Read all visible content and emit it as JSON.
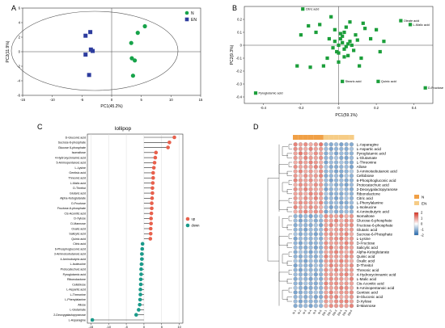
{
  "colors": {
    "N": "#17a34a",
    "EN": "#2d3c9e",
    "loading": "#1b9e3a",
    "up": "#e8604c",
    "down": "#1a9a8a",
    "heat_high": "#d7301f",
    "heat_mid": "#ffffff",
    "heat_low": "#2166ac",
    "group_N": "#f0a046",
    "group_EN": "#f6cc86"
  },
  "chart_data": [
    {
      "panel": "A",
      "type": "scatter",
      "title": "",
      "xlabel": "PC1(45.2%)",
      "ylabel": "PC2(11.9%)",
      "xlim": [
        -15,
        15
      ],
      "ylim": [
        -6,
        6
      ],
      "xticks": [
        -15,
        -10,
        -5,
        0,
        5,
        10,
        15
      ],
      "yticks": [
        -6,
        -4,
        -2,
        0,
        2,
        4,
        6
      ],
      "legend_position": "top-right",
      "series": [
        {
          "name": "N",
          "marker": "circle",
          "x": [
            4.4,
            5.6,
            3.3,
            3.4,
            3.9,
            3.6
          ],
          "y": [
            2.6,
            3.5,
            1.2,
            -0.9,
            -1.2,
            -3.3
          ]
        },
        {
          "name": "EN",
          "marker": "square",
          "x": [
            -4.4,
            -3.6,
            -3.2,
            -4.4,
            -3.8,
            -3.5
          ],
          "y": [
            2.2,
            2.7,
            0.1,
            -0.4,
            -3.2,
            0.3
          ]
        }
      ]
    },
    {
      "panel": "B",
      "type": "scatter",
      "title": "",
      "xlabel": "PC1(59.1%)",
      "ylabel": "PC2(9.3%)",
      "xlim": [
        -0.5,
        0.5
      ],
      "ylim": [
        -0.45,
        0.3
      ],
      "xticks": [
        -0.4,
        -0.2,
        0,
        0.2,
        0.4
      ],
      "yticks": [
        -0.4,
        -0.3,
        -0.2,
        -0.1,
        0,
        0.1,
        0.2
      ],
      "labeled_points": [
        {
          "label": "Citric acid",
          "x": -0.19,
          "y": 0.28
        },
        {
          "label": "Oleate acid",
          "x": 0.33,
          "y": 0.19
        },
        {
          "label": "L-Malic acid",
          "x": 0.38,
          "y": 0.16
        },
        {
          "label": "Stearic acid",
          "x": 0.02,
          "y": -0.28
        },
        {
          "label": "Quinic acid",
          "x": 0.21,
          "y": -0.28
        },
        {
          "label": "D-Fructose",
          "x": 0.46,
          "y": -0.33
        },
        {
          "label": "Pyroglutamic acid",
          "x": -0.44,
          "y": -0.37
        }
      ],
      "points": {
        "x": [
          0.0,
          0.02,
          0.04,
          -0.02,
          0.05,
          0.03,
          0.06,
          -0.03,
          0.01,
          0.07,
          0.0,
          0.02,
          -0.05,
          0.08,
          0.03,
          0.1,
          0.05,
          -0.02,
          0.04,
          0.09,
          -0.06,
          0.12,
          0.06,
          0.0,
          -0.1,
          -0.12,
          -0.16,
          -0.2,
          -0.08,
          -0.04,
          0.14,
          0.17,
          0.2,
          0.24,
          0.22,
          -0.22,
          -0.15,
          0.01,
          0.03,
          -0.01,
          0.11,
          0.13
        ],
        "y": [
          0.0,
          0.02,
          -0.01,
          0.03,
          0.01,
          -0.03,
          0.03,
          -0.02,
          0.05,
          0.0,
          -0.06,
          0.07,
          0.05,
          -0.04,
          0.1,
          0.04,
          -0.08,
          0.12,
          0.14,
          0.08,
          -0.1,
          -0.1,
          0.18,
          -0.13,
          0.16,
          0.1,
          0.15,
          0.08,
          -0.16,
          0.22,
          0.13,
          0.05,
          0.12,
          0.03,
          -0.05,
          -0.16,
          -0.17,
          0.09,
          -0.09,
          -0.05,
          -0.16,
          0.17
        ]
      }
    },
    {
      "panel": "C",
      "type": "lollipop",
      "title": "lollipop",
      "xlabel": "",
      "xlim": [
        -16,
        11
      ],
      "xticks": [
        -15,
        -10,
        -5,
        0,
        5,
        10
      ],
      "legend": [
        {
          "name": "up",
          "key": "up"
        },
        {
          "name": "down",
          "key": "down"
        }
      ],
      "legend_position": "right",
      "categories": [
        "D-Gluconic acid",
        "Sucrose-6-phosphate",
        "Glucose 6-phosphate",
        "Isomaltose",
        "4-Hydroxycinnamic acid",
        "5-Aminopentanoic acid",
        "L-Lysine",
        "Gentisic acid",
        "Threonic acid",
        "L-Malic acid",
        "D-Threitol",
        "Glutaric acid",
        "Alpha-Ketoglutarate",
        "D-Fructose",
        "Fructose-6-phosphate",
        "Cis-Aconitic acid",
        "D-Xylose",
        "D-Mannose",
        "Oxalic acid",
        "Salicylic acid",
        "Quinic acid",
        "Citric acid",
        "6-Phosphogluconic acid",
        "3-Aminoisobutanoic acid",
        "4-Aminobutyric acid",
        "L-Isoleucine",
        "Protocatechuic acid",
        "Pyroglutamic acid",
        "Ribonolactone",
        "Cellobiose",
        "L-Aspartic acid",
        "L-Threonine",
        "L-Phenylalanine",
        "Allose",
        "L-Glutamate",
        "2-Deoxygalactopyranose",
        "L-Asparagine"
      ],
      "values": [
        8.6,
        7.2,
        6.8,
        3.4,
        3.2,
        3.0,
        2.8,
        2.6,
        2.6,
        2.5,
        2.4,
        2.4,
        2.3,
        2.2,
        2.2,
        2.1,
        2.0,
        2.0,
        1.9,
        1.9,
        1.8,
        -0.4,
        -0.5,
        -0.6,
        -0.6,
        -0.7,
        -0.8,
        -0.8,
        -0.9,
        -0.9,
        -1.0,
        -1.0,
        -1.1,
        -1.2,
        -1.5,
        -2.2,
        -14.6
      ]
    },
    {
      "panel": "D",
      "type": "heatmap",
      "title": "",
      "legend": [
        {
          "name": "N",
          "key": "group_N"
        },
        {
          "name": "EN",
          "key": "group_EN"
        }
      ],
      "colorbar_ticks": [
        2,
        1,
        0,
        -1,
        -2
      ],
      "columns": [
        "N-1",
        "N-2",
        "N-3",
        "N-4",
        "N-5",
        "N-6",
        "EN-1",
        "EN-2",
        "EN-3",
        "EN-4",
        "EN-5",
        "EN-6"
      ],
      "column_groups": [
        "N",
        "N",
        "N",
        "N",
        "N",
        "N",
        "EN",
        "EN",
        "EN",
        "EN",
        "EN",
        "EN"
      ],
      "rows": [
        "L-Asparagine",
        "L-Aspartic acid",
        "Pyroglutamic acid",
        "L-Glutamate",
        "L-Threonine",
        "Allose",
        "3-Aminoisobutanoic acid",
        "Cellobiose",
        "6-Phosphogluconic acid",
        "Protocatechuic acid",
        "2-Deoxygalactopyranose",
        "Ribonolactone",
        "Citric acid",
        "L-Phenylalanine",
        "L-Isoleucine",
        "4-Aminobutyric acid",
        "Isomaltose",
        "Glucose-6-phosphate",
        "Fructose-6-phosphate",
        "Glutaric acid",
        "Sucrose-6-Phosphate",
        "L-Lysine",
        "D-Fructose",
        "Salicylic acid",
        "Alpha-Ketoglutarate",
        "Quinic acid",
        "Oxalic acid",
        "D-Threitol",
        "Threonic acid",
        "4-Hydroxycinnamic acid",
        "L-Malic acid",
        "Cis-Aconitic acid",
        "5-Aminopentanoic acid",
        "Gentisic acid",
        "D-Gluconic acid",
        "D-Xylose",
        "D-Mannose"
      ],
      "values": [
        [
          1.2,
          0.9,
          1.1,
          0.8,
          1.0,
          1.3,
          -1.0,
          -1.1,
          -0.9,
          -1.2,
          -1.0,
          -1.1
        ],
        [
          1.1,
          1.0,
          0.8,
          1.2,
          0.9,
          1.0,
          -0.9,
          -1.2,
          -1.0,
          -1.0,
          -1.1,
          -0.8
        ],
        [
          0.9,
          1.3,
          1.0,
          0.7,
          1.1,
          0.9,
          -1.1,
          -0.8,
          -1.2,
          -0.9,
          -1.0,
          -1.0
        ],
        [
          1.0,
          0.8,
          1.2,
          1.0,
          0.9,
          1.1,
          -1.0,
          -1.0,
          -0.8,
          -1.1,
          -1.2,
          -0.9
        ],
        [
          0.8,
          1.1,
          0.9,
          1.2,
          1.0,
          0.8,
          -1.2,
          -0.9,
          -1.0,
          -0.8,
          -1.0,
          -1.1
        ],
        [
          1.1,
          0.9,
          1.0,
          0.9,
          1.2,
          1.0,
          -0.8,
          -1.1,
          -1.1,
          -1.0,
          -0.9,
          -1.2
        ],
        [
          0.9,
          1.2,
          0.8,
          1.0,
          0.7,
          1.1,
          -1.0,
          -0.9,
          -1.2,
          -1.1,
          -1.0,
          -0.7
        ],
        [
          1.0,
          0.7,
          1.1,
          0.9,
          1.0,
          1.2,
          -1.1,
          -1.0,
          -0.9,
          -1.2,
          -0.8,
          -1.0
        ],
        [
          1.2,
          1.0,
          0.9,
          1.1,
          0.8,
          0.9,
          -0.9,
          -1.2,
          -1.0,
          -0.9,
          -1.1,
          -1.0
        ],
        [
          0.8,
          1.1,
          1.0,
          0.8,
          1.1,
          1.0,
          -1.0,
          -0.8,
          -1.1,
          -1.0,
          -1.2,
          -0.9
        ],
        [
          1.1,
          0.9,
          1.2,
          1.0,
          0.9,
          0.8,
          -1.2,
          -1.0,
          -0.9,
          -0.8,
          -1.0,
          -1.1
        ],
        [
          0.9,
          1.0,
          0.8,
          1.2,
          1.0,
          1.1,
          -0.8,
          -1.1,
          -1.0,
          -1.1,
          -0.9,
          -1.0
        ],
        [
          1.0,
          0.8,
          1.1,
          0.9,
          1.2,
          0.9,
          -1.1,
          -0.9,
          -1.2,
          -1.0,
          -0.8,
          -1.0
        ],
        [
          0.9,
          1.1,
          1.0,
          1.0,
          0.8,
          1.2,
          -1.0,
          -1.0,
          -0.9,
          -1.2,
          -1.1,
          -0.9
        ],
        [
          1.2,
          0.9,
          0.9,
          1.1,
          1.0,
          0.8,
          -0.9,
          -1.2,
          -1.0,
          -0.9,
          -1.0,
          -1.1
        ],
        [
          0.8,
          1.0,
          1.2,
          0.9,
          1.1,
          1.0,
          -1.2,
          -0.8,
          -1.1,
          -1.0,
          -0.9,
          -1.0
        ],
        [
          -1.0,
          -1.1,
          -0.9,
          -1.2,
          -1.0,
          -0.8,
          1.1,
          1.0,
          0.9,
          1.2,
          0.8,
          1.0
        ],
        [
          -0.9,
          -1.2,
          -1.0,
          -0.8,
          -1.1,
          -1.0,
          1.0,
          0.9,
          1.2,
          0.8,
          1.1,
          1.0
        ],
        [
          -1.1,
          -0.9,
          -1.0,
          -1.1,
          -0.8,
          -1.2,
          0.9,
          1.2,
          0.8,
          1.0,
          1.0,
          1.1
        ],
        [
          -1.0,
          -1.0,
          -1.2,
          -0.9,
          -1.0,
          -0.9,
          1.2,
          0.8,
          1.0,
          1.1,
          0.9,
          1.0
        ],
        [
          -0.8,
          -1.1,
          -0.9,
          -1.0,
          -1.2,
          -1.0,
          1.0,
          1.1,
          0.9,
          1.0,
          1.2,
          0.8
        ],
        [
          -1.2,
          -0.9,
          -1.0,
          -1.0,
          -0.9,
          -1.1,
          0.8,
          1.0,
          1.1,
          1.2,
          0.9,
          1.0
        ],
        [
          -1.0,
          -1.2,
          -0.8,
          -1.1,
          -1.0,
          -0.9,
          1.1,
          0.9,
          1.0,
          0.9,
          1.2,
          1.0
        ],
        [
          -0.9,
          -1.0,
          -1.1,
          -0.9,
          -1.2,
          -1.0,
          1.0,
          1.2,
          0.8,
          1.1,
          1.0,
          0.9
        ],
        [
          -1.1,
          -0.8,
          -1.0,
          -1.2,
          -0.9,
          -1.0,
          0.9,
          1.0,
          1.2,
          1.0,
          0.8,
          1.1
        ],
        [
          -1.0,
          -1.1,
          -0.9,
          -1.0,
          -1.1,
          -0.8,
          1.2,
          0.9,
          1.0,
          0.8,
          1.1,
          1.0
        ],
        [
          -0.8,
          -1.0,
          -1.2,
          -0.9,
          -1.0,
          -1.1,
          1.0,
          1.1,
          0.9,
          1.2,
          1.0,
          0.8
        ],
        [
          -1.2,
          -0.9,
          -1.0,
          -1.1,
          -0.8,
          -1.0,
          0.8,
          1.2,
          1.0,
          1.0,
          0.9,
          1.1
        ],
        [
          -1.0,
          -1.2,
          -0.9,
          -1.0,
          -1.0,
          -0.9,
          1.1,
          0.8,
          1.2,
          0.9,
          1.0,
          1.0
        ],
        [
          -0.9,
          -1.0,
          -1.1,
          -0.8,
          -1.2,
          -1.0,
          1.0,
          1.0,
          0.9,
          1.1,
          1.2,
          0.9
        ],
        [
          -1.1,
          -0.9,
          -1.0,
          -1.2,
          -0.9,
          -1.1,
          0.9,
          1.1,
          1.0,
          1.0,
          0.8,
          1.2
        ],
        [
          -1.0,
          -1.1,
          -0.8,
          -1.0,
          -1.1,
          -0.9,
          1.2,
          1.0,
          1.1,
          0.9,
          1.0,
          0.9
        ],
        [
          -0.8,
          -1.0,
          -1.2,
          -1.1,
          -1.0,
          -1.0,
          1.0,
          0.9,
          1.0,
          1.2,
          1.1,
          0.8
        ],
        [
          -1.2,
          -1.1,
          -0.9,
          -1.0,
          -0.8,
          -1.0,
          0.9,
          1.2,
          0.8,
          1.0,
          1.0,
          1.1
        ],
        [
          -1.0,
          -0.9,
          -1.1,
          -0.9,
          -1.2,
          -1.1,
          1.1,
          1.0,
          1.2,
          0.8,
          0.9,
          1.0
        ],
        [
          -0.9,
          -1.2,
          -1.0,
          -1.0,
          -1.0,
          -0.8,
          1.0,
          0.8,
          1.1,
          1.1,
          1.2,
          0.9
        ],
        [
          -1.1,
          -1.0,
          -0.9,
          -1.2,
          -0.9,
          -1.0,
          0.8,
          1.1,
          1.0,
          1.0,
          0.9,
          1.2
        ]
      ]
    }
  ]
}
